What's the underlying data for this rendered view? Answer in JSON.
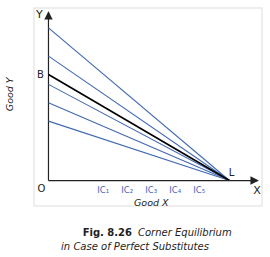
{
  "chart_data": {
    "type": "line",
    "title": "Fig. 8.26",
    "subtitle": "Corner Equilibrium",
    "xlabel": "Good X",
    "ylabel": "Good Y",
    "annotations": [
      "in Case of Perfect Substitutes",
      "O",
      "X",
      "Y",
      "B",
      "L"
    ],
    "x": [
      0,
      1.0
    ],
    "series": [
      {
        "color": "#000000",
        "values": [
          0.75,
          0.0
        ]
      },
      {
        "name": "IC₁",
        "color": "#4169B0",
        "values": [
          1.08,
          0.0
        ]
      },
      {
        "name": "IC₂",
        "color": "#4169B0",
        "values": [
          0.88,
          0.0
        ]
      },
      {
        "name": "IC₃",
        "color": "#4169B0",
        "values": [
          0.68,
          0.0
        ]
      },
      {
        "name": "IC₄",
        "color": "#4169B0",
        "values": [
          0.55,
          0.0
        ]
      },
      {
        "name": "IC₅",
        "color": "#4169B0",
        "values": [
          0.42,
          0.0
        ]
      }
    ],
    "xlim": [
      -0.08,
      1.18
    ],
    "ylim": [
      -0.18,
      1.22
    ],
    "tick_labels": false
  }
}
